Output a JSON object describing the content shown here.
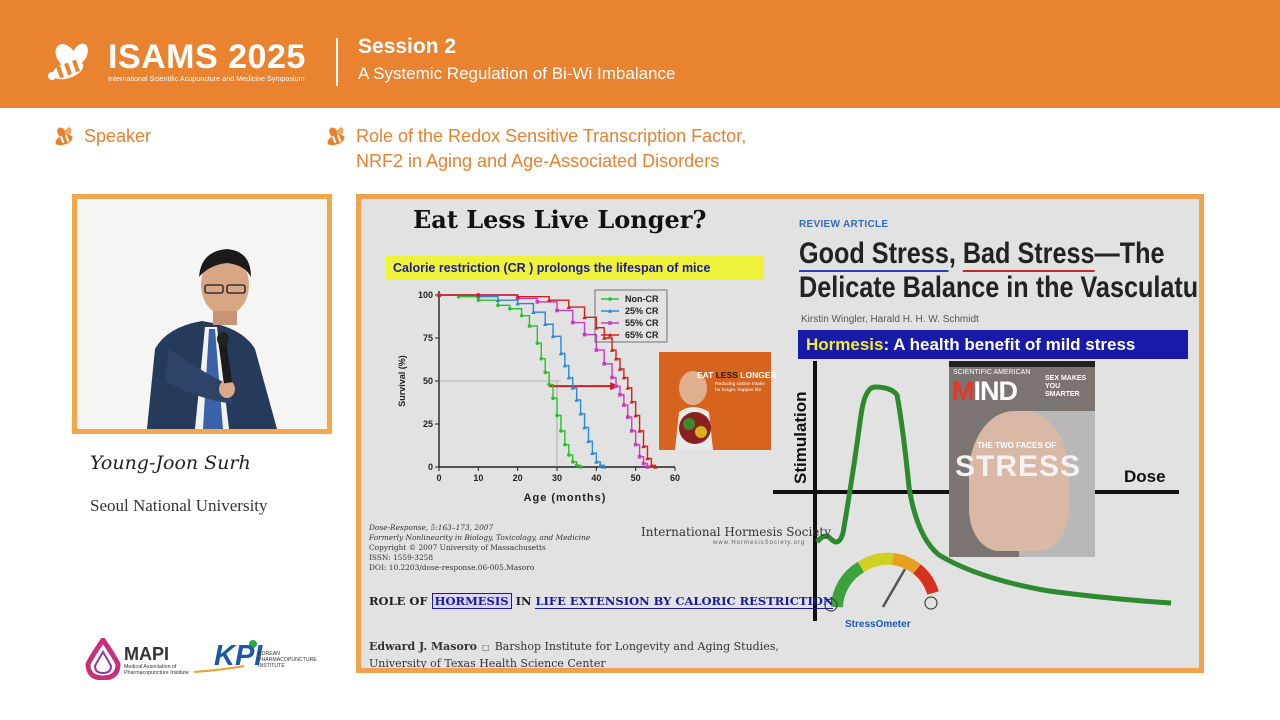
{
  "header": {
    "logo_title": "ISAMS 2025",
    "logo_subtitle": "International Scientific Acupuncture and Medicine Symposium",
    "session_title": "Session 2",
    "session_subtitle": "A Systemic Regulation of Bi-Wi Imbalance",
    "accent_color": "#ea8330"
  },
  "labels": {
    "speaker": "Speaker",
    "topic_line1": "Role of the Redox Sensitive Transcription Factor,",
    "topic_line2": "NRF2 in Aging and Age-Associated Disorders"
  },
  "speaker": {
    "name": "Young-Joon Surh",
    "affiliation": "Seoul National University"
  },
  "sponsors": {
    "mapi": "MAPI",
    "mapi_sub": "Medical Association of Pharmacopuncture Institute",
    "kpi": "KPI",
    "kpi_sub_1": "KOREAN",
    "kpi_sub_2": "PHARMACOPUNCTURE",
    "kpi_sub_3": "INSTITUTE"
  },
  "slide": {
    "title": "Eat Less Live Longer?",
    "cr_banner_1": "Calorie restriction (",
    "cr_banner_cr": "CR",
    "cr_banner_2": " ) prolongs the lifespan of mice",
    "review_label": "REVIEW ARTICLE",
    "article_title_part1": "Good Stress",
    "article_title_comma": ", ",
    "article_title_part2": "Bad Stress",
    "article_title_part3": "—The",
    "article_title_line2": "Delicate Balance in the Vasculature",
    "article_authors": "Kirstin Wingler, Harald H. H. W. Schmidt",
    "hormesis_word": "Hormesis",
    "hormesis_rest": ": A health benefit of mild stress",
    "ref_line1": "Dose-Response, 5:163–173, 2007",
    "ref_line2": "Formerly Nonlinearity in Biology, Toxicology, and Medicine",
    "ref_line3": "Copyright © 2007 University of Massachusetts",
    "ref_line4": "ISSN: 1559-3258",
    "ref_line5": "DOI: 10.2203/dose-response.06-005.Masoro",
    "society_name": "International Hormesis Society",
    "society_url": "www.HormesisSociety.org",
    "role_1": "ROLE OF ",
    "role_hormesis": "HORMESIS",
    "role_2": " IN ",
    "role_3": "LIFE EXTENSION BY CALORIC RESTRICTION",
    "author_name": "Edward J. Masoro",
    "author_affil_1": "Barshop Institute for Longevity and Aging Studies,",
    "author_affil_2": "University of Texas Health Science Center",
    "stim_label": "Stimulation",
    "dose_label": "Dose",
    "stressometer": "StressOmeter",
    "book_title_1": "EAT ",
    "book_title_2": "LESS",
    "book_title_3": " LONGER",
    "book_sub": "Reducing calorie intake for longer, happier life",
    "mind_header": "SCIENTIFIC AMERICAN",
    "mind_title_a": "M",
    "mind_title_b": "IND",
    "mind_sex": "SEX MAKES YOU SMARTER",
    "mind_two_faces": "THE TWO FACES OF",
    "mind_stress": "STRESS"
  },
  "chart_data": {
    "type": "line",
    "xlabel": "Age (months)",
    "ylabel": "Survival (%)",
    "xlim": [
      0,
      60
    ],
    "ylim": [
      0,
      100
    ],
    "xticks": [
      0,
      10,
      20,
      30,
      40,
      50,
      60
    ],
    "yticks": [
      0,
      25,
      50,
      75,
      100
    ],
    "legend_position": "top-right",
    "series": [
      {
        "name": "Non-CR",
        "color": "#27c227",
        "marker": "circle",
        "x": [
          0,
          5,
          10,
          15,
          18,
          21,
          23,
          25,
          26,
          27,
          28,
          29,
          30,
          31,
          32,
          33,
          34,
          35,
          36
        ],
        "y": [
          100,
          99,
          97,
          94,
          92,
          88,
          82,
          72,
          63,
          55,
          48,
          40,
          30,
          21,
          13,
          7,
          3,
          1,
          0
        ]
      },
      {
        "name": "25% CR",
        "color": "#2a8ad6",
        "marker": "triangle",
        "x": [
          0,
          10,
          15,
          20,
          24,
          27,
          29,
          31,
          32,
          33,
          34,
          35,
          36,
          37,
          38,
          39,
          40,
          41,
          42
        ],
        "y": [
          100,
          99,
          97,
          95,
          90,
          83,
          76,
          66,
          59,
          52,
          46,
          39,
          31,
          23,
          15,
          8,
          3,
          1,
          0
        ]
      },
      {
        "name": "55% CR",
        "color": "#c83cc2",
        "marker": "square",
        "x": [
          0,
          10,
          20,
          25,
          30,
          34,
          37,
          40,
          42,
          44,
          45,
          46,
          47,
          48,
          49,
          50,
          51,
          52,
          53
        ],
        "y": [
          100,
          100,
          98,
          96,
          91,
          84,
          77,
          68,
          60,
          52,
          47,
          42,
          36,
          29,
          21,
          13,
          6,
          2,
          0
        ]
      },
      {
        "name": "65% CR",
        "color": "#d21f1f",
        "marker": "triangle",
        "x": [
          0,
          10,
          20,
          28,
          33,
          37,
          40,
          42,
          44,
          45,
          46,
          47,
          48,
          49,
          50,
          51,
          52,
          53,
          54,
          55
        ],
        "y": [
          100,
          100,
          99,
          97,
          93,
          87,
          81,
          75,
          68,
          63,
          57,
          52,
          46,
          38,
          30,
          21,
          12,
          5,
          1,
          0
        ]
      }
    ]
  }
}
